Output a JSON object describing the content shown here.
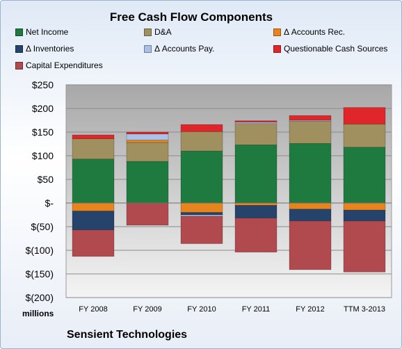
{
  "chart_data": {
    "type": "bar",
    "stacked": true,
    "title": "Free Cash Flow Components",
    "units_label": "millions",
    "company": "Sensient Technologies",
    "categories": [
      "FY 2008",
      "FY 2009",
      "FY 2010",
      "FY 2011",
      "FY 2012",
      "TTM 3-2013"
    ],
    "ylim": [
      -200,
      250
    ],
    "yticks": [
      -200,
      -150,
      -100,
      -50,
      0,
      50,
      100,
      150,
      200,
      250
    ],
    "ytick_labels": [
      "$(200)",
      "$(150)",
      "$(100)",
      "$(50)",
      "$-",
      "$50",
      "$100",
      "$150",
      "$200",
      "$250"
    ],
    "grid": true,
    "legend_position": "top",
    "series": [
      {
        "name": "Net Income",
        "color": "#1f7a3f",
        "values": [
          93,
          88,
          110,
          123,
          126,
          118
        ]
      },
      {
        "name": "D&A",
        "color": "#a09060",
        "values": [
          43,
          40,
          41,
          45,
          47,
          49
        ]
      },
      {
        "name": "Δ Accounts Rec.",
        "color": "#e8841c",
        "values": [
          -17,
          5,
          -20,
          -5,
          -13,
          -15
        ]
      },
      {
        "name": "Δ Inventories",
        "color": "#25436b",
        "values": [
          -40,
          0,
          -5,
          -27,
          -25,
          -23
        ]
      },
      {
        "name": "Δ Accounts Pay.",
        "color": "#a9c1e6",
        "values": [
          0,
          13,
          -3,
          3,
          2,
          0
        ]
      },
      {
        "name": "Questionable Cash Sources",
        "color": "#e0262a",
        "values": [
          8,
          4,
          15,
          3,
          10,
          35
        ]
      },
      {
        "name": "Capital Expenditures",
        "color": "#b04a4e",
        "values": [
          -56,
          -47,
          -58,
          -72,
          -103,
          -108
        ]
      }
    ]
  }
}
